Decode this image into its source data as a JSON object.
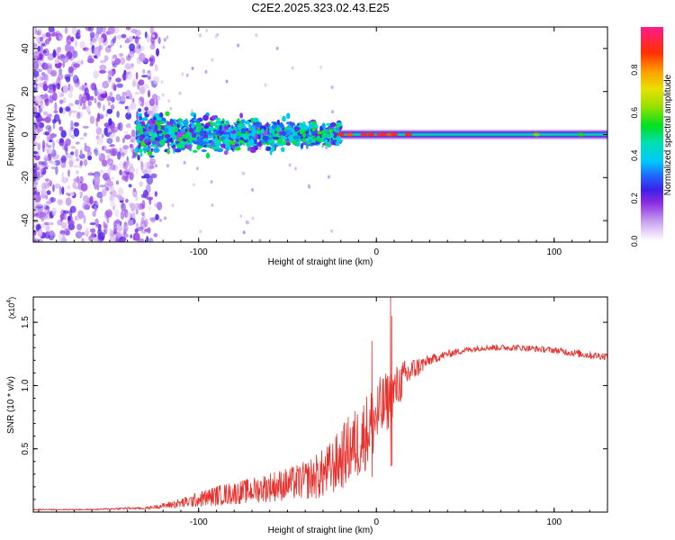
{
  "title": "C2E2.2025.323.02.43.E25",
  "chart_data": [
    {
      "type": "heatmap",
      "xlabel": "Height of straight line (km)",
      "ylabel": "Frequency (Hz)",
      "xlim": [
        -193,
        130
      ],
      "ylim": [
        -50,
        50
      ],
      "xticks": [
        -100,
        0,
        100
      ],
      "xtick_labels": [
        "-100",
        "0",
        "100"
      ],
      "yticks": [
        -40,
        -20,
        0,
        20,
        40
      ],
      "ytick_labels": [
        "-40",
        "-20",
        "0",
        "20",
        "40"
      ],
      "colorbar": {
        "label": "Normalized spectral amplitude",
        "range": [
          0,
          1
        ],
        "ticks": [
          0.0,
          0.2,
          0.4,
          0.6,
          0.8
        ],
        "tick_labels": [
          "0.0",
          "0.2",
          "0.4",
          "0.6",
          "0.8"
        ]
      },
      "features": [
        {
          "name": "diffuse noise",
          "x_range": [
            -193,
            -122
          ],
          "freq_range": [
            -50,
            50
          ],
          "amplitude": 0.15
        },
        {
          "name": "carrier spread",
          "x_range": [
            -135,
            -20
          ],
          "freq_center": 0,
          "freq_spread": 10,
          "amplitude": 0.3
        },
        {
          "name": "carrier line",
          "x_range": [
            -20,
            130
          ],
          "freq_center": 0,
          "freq_spread": 1.5,
          "amplitude": 0.45
        },
        {
          "name": "peaks",
          "x": [
            -20,
            -15,
            -7,
            -3,
            2,
            4,
            8,
            10,
            18,
            90,
            115
          ],
          "amplitude": [
            0.9,
            0.85,
            0.92,
            0.88,
            0.95,
            0.9,
            0.85,
            0.9,
            0.88,
            0.6,
            0.55
          ]
        }
      ]
    },
    {
      "type": "line",
      "xlabel": "Height of straight line (km)",
      "ylabel": "SNR (10 * v/v)",
      "yscale_label": "(x10",
      "yscale_exp": "4",
      "yscale_close": ")",
      "xlim": [
        -193,
        130
      ],
      "ylim": [
        0,
        1.7
      ],
      "xticks": [
        -100,
        0,
        100
      ],
      "xtick_labels": [
        "-100",
        "0",
        "100"
      ],
      "yticks": [
        0.5,
        1.0,
        1.5
      ],
      "ytick_labels": [
        "0.5",
        "1.0",
        "1.5"
      ],
      "color": "#e8302c",
      "series": [
        {
          "name": "SNR",
          "x": [
            -193,
            -160,
            -140,
            -130,
            -120,
            -110,
            -100,
            -90,
            -80,
            -70,
            -60,
            -50,
            -40,
            -30,
            -25,
            -20,
            -15,
            -10,
            -5,
            0,
            5,
            10,
            15,
            20,
            30,
            40,
            50,
            60,
            70,
            80,
            90,
            100,
            110,
            120,
            130
          ],
          "y": [
            0.02,
            0.02,
            0.03,
            0.03,
            0.05,
            0.07,
            0.1,
            0.13,
            0.15,
            0.17,
            0.2,
            0.22,
            0.25,
            0.3,
            0.35,
            0.42,
            0.5,
            0.55,
            0.65,
            0.75,
            0.85,
            0.95,
            1.05,
            1.12,
            1.2,
            1.25,
            1.28,
            1.3,
            1.3,
            1.3,
            1.29,
            1.28,
            1.26,
            1.24,
            1.23
          ],
          "noise": [
            0.005,
            0.005,
            0.01,
            0.01,
            0.02,
            0.04,
            0.06,
            0.08,
            0.09,
            0.1,
            0.12,
            0.13,
            0.15,
            0.2,
            0.22,
            0.25,
            0.28,
            0.3,
            0.3,
            0.3,
            0.25,
            0.2,
            0.15,
            0.1,
            0.04,
            0.03,
            0.025,
            0.025,
            0.025,
            0.025,
            0.025,
            0.025,
            0.03,
            0.03,
            0.03
          ],
          "spikes": [
            {
              "x": 8,
              "y": 1.7
            },
            {
              "x": 8.6,
              "y": 1.55
            },
            {
              "x": -2.5,
              "y": 1.35
            }
          ]
        }
      ]
    }
  ]
}
